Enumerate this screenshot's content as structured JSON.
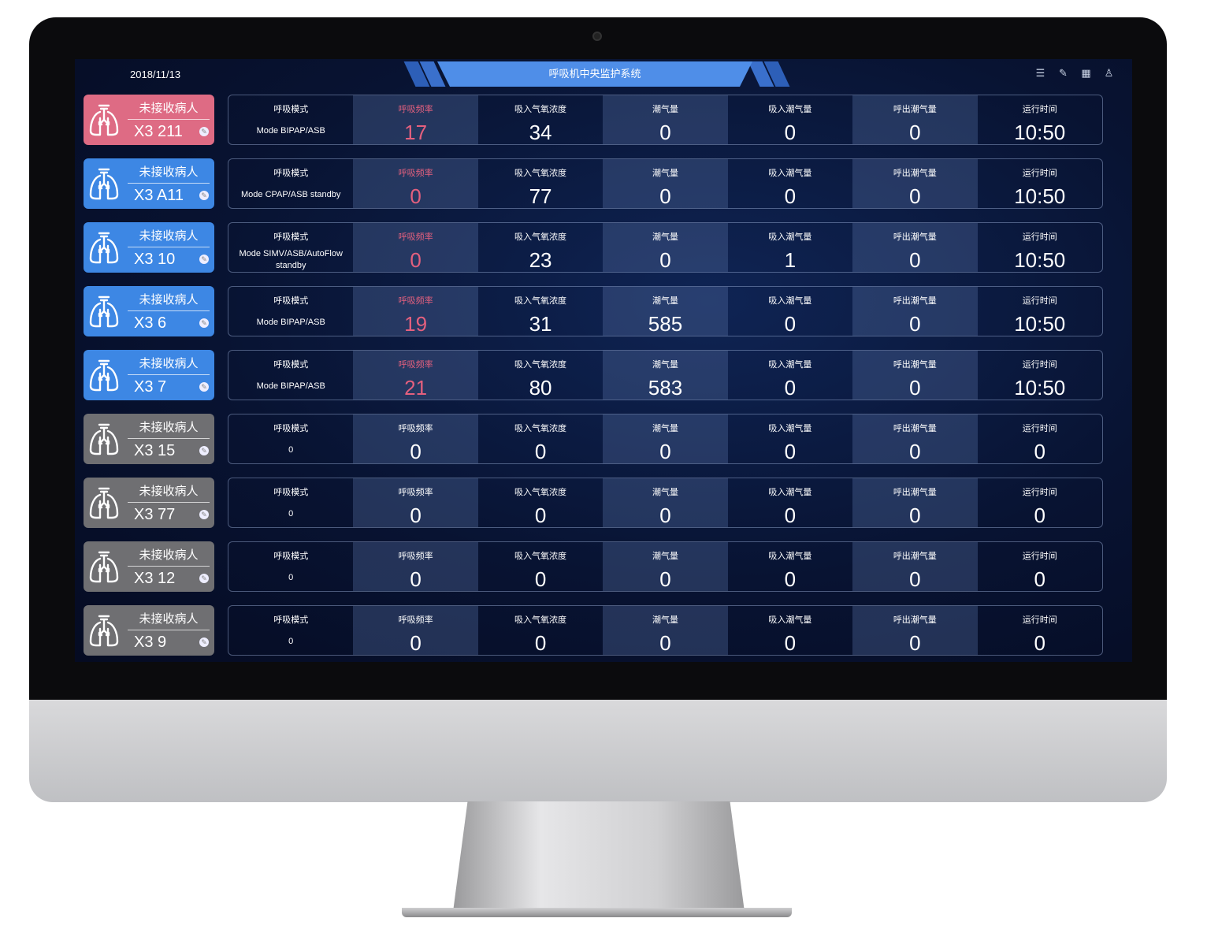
{
  "header": {
    "date": "2018/11/13",
    "title": "呼吸机中央监护系统",
    "icons": [
      "list-icon",
      "edit-icon",
      "layout-icon",
      "user-icon"
    ]
  },
  "colors": {
    "pink": "#de6b84",
    "blue": "#3d87e4",
    "gray": "#6f6f72",
    "alert_text": "#e4607e",
    "title_bar": "#4f8ee8"
  },
  "labels": [
    "呼吸模式",
    "呼吸频率",
    "吸入气氧浓度",
    "潮气量",
    "吸入潮气量",
    "呼出潮气量",
    "运行时间"
  ],
  "patients": [
    {
      "status": "未接收病人",
      "bed": "X3 211",
      "color": "pink",
      "alert": true,
      "values": [
        "Mode BIPAP/ASB",
        "17",
        "34",
        "0",
        "0",
        "0",
        "10:50"
      ]
    },
    {
      "status": "未接收病人",
      "bed": "X3 A11",
      "color": "blue",
      "alert": true,
      "values": [
        "Mode CPAP/ASB standby",
        "0",
        "77",
        "0",
        "0",
        "0",
        "10:50"
      ]
    },
    {
      "status": "未接收病人",
      "bed": "X3 10",
      "color": "blue",
      "alert": true,
      "values": [
        "Mode SIMV/ASB/AutoFlow standby",
        "0",
        "23",
        "0",
        "1",
        "0",
        "10:50"
      ]
    },
    {
      "status": "未接收病人",
      "bed": "X3 6",
      "color": "blue",
      "alert": true,
      "values": [
        "Mode BIPAP/ASB",
        "19",
        "31",
        "585",
        "0",
        "0",
        "10:50"
      ]
    },
    {
      "status": "未接收病人",
      "bed": "X3 7",
      "color": "blue",
      "alert": true,
      "values": [
        "Mode BIPAP/ASB",
        "21",
        "80",
        "583",
        "0",
        "0",
        "10:50"
      ]
    },
    {
      "status": "未接收病人",
      "bed": "X3 15",
      "color": "gray",
      "alert": false,
      "values": [
        "0",
        "0",
        "0",
        "0",
        "0",
        "0",
        "0"
      ]
    },
    {
      "status": "未接收病人",
      "bed": "X3 77",
      "color": "gray",
      "alert": false,
      "values": [
        "0",
        "0",
        "0",
        "0",
        "0",
        "0",
        "0"
      ]
    },
    {
      "status": "未接收病人",
      "bed": "X3 12",
      "color": "gray",
      "alert": false,
      "values": [
        "0",
        "0",
        "0",
        "0",
        "0",
        "0",
        "0"
      ]
    },
    {
      "status": "未接收病人",
      "bed": "X3 9",
      "color": "gray",
      "alert": false,
      "values": [
        "0",
        "0",
        "0",
        "0",
        "0",
        "0",
        "0"
      ]
    }
  ]
}
